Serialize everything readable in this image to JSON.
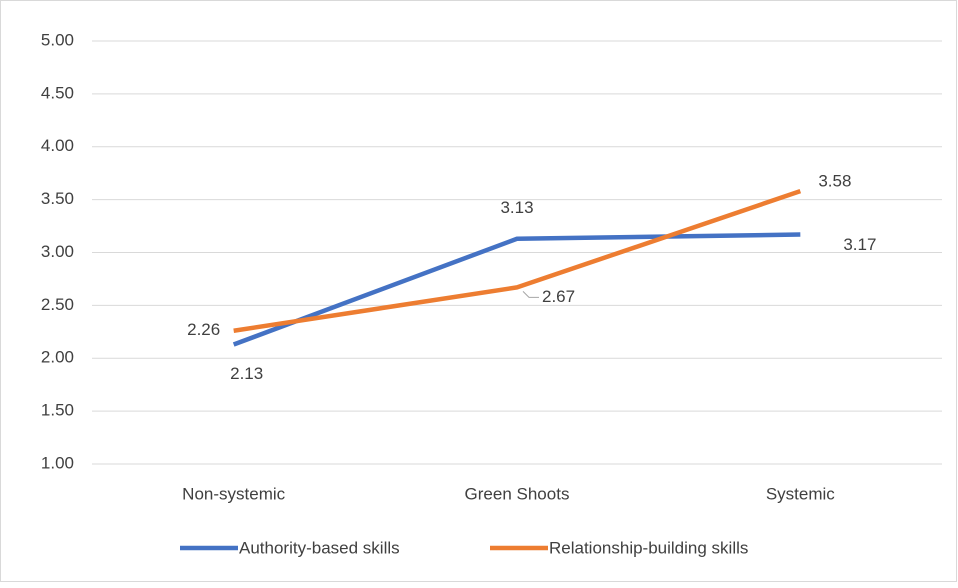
{
  "chart_data": {
    "type": "line",
    "categories": [
      "Non-systemic",
      "Green Shoots",
      "Systemic"
    ],
    "series": [
      {
        "name": "Authority-based skills",
        "color": "#4472c4",
        "values": [
          2.13,
          3.13,
          3.17
        ]
      },
      {
        "name": "Relationship-building skills",
        "color": "#ed7d31",
        "values": [
          2.26,
          2.67,
          3.58
        ]
      }
    ],
    "ylim": [
      1,
      5
    ],
    "yticks": [
      {
        "value": 1,
        "label": "1.00"
      },
      {
        "value": 1.5,
        "label": "1.50"
      },
      {
        "value": 2,
        "label": "2.00"
      },
      {
        "value": 2.5,
        "label": "2.50"
      },
      {
        "value": 3,
        "label": "3.00"
      },
      {
        "value": 3.5,
        "label": "3.50"
      },
      {
        "value": 4,
        "label": "4.00"
      },
      {
        "value": 4.5,
        "label": "4.50"
      },
      {
        "value": 5,
        "label": "5.00"
      }
    ],
    "grid": true,
    "legend": "bottom"
  }
}
